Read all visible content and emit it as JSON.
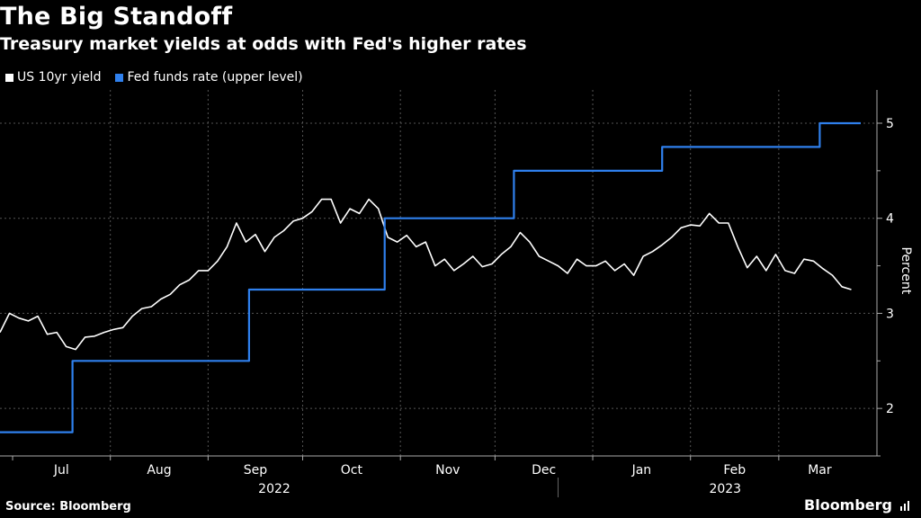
{
  "title": "The Big Standoff",
  "subtitle": "Treasury market yields at odds with Fed's higher rates",
  "legend": [
    {
      "label": "US 10yr yield",
      "color": "#ffffff"
    },
    {
      "label": "Fed funds rate (upper level)",
      "color": "#2f80ed"
    }
  ],
  "footer": {
    "source": "Source: Bloomberg",
    "brand": "Bloomberg"
  },
  "chart_data": {
    "type": "line",
    "title": "The Big Standoff",
    "subtitle": "Treasury market yields at odds with Fed's higher rates",
    "ylabel": "Percent",
    "ylim": [
      1.5,
      5.35
    ],
    "yticks": [
      2,
      3,
      4,
      5
    ],
    "x_is_day_index": "day 0 = 2022-06-27",
    "xlim": [
      0,
      273
    ],
    "month_ticks": [
      {
        "label": "Jul",
        "day": 4
      },
      {
        "label": "Aug",
        "day": 35
      },
      {
        "label": "Sep",
        "day": 66
      },
      {
        "label": "Oct",
        "day": 96
      },
      {
        "label": "Nov",
        "day": 127
      },
      {
        "label": "Dec",
        "day": 157
      },
      {
        "label": "Jan",
        "day": 188
      },
      {
        "label": "Feb",
        "day": 219
      },
      {
        "label": "Mar",
        "day": 247
      }
    ],
    "year_labels": [
      {
        "label": "2022",
        "day": 87
      },
      {
        "label": "2023",
        "day": 230
      }
    ],
    "year_divider_day": 177,
    "series": [
      {
        "name": "US 10yr yield",
        "color": "#ffffff",
        "x": [
          0,
          3,
          6,
          9,
          12,
          15,
          18,
          21,
          24,
          27,
          30,
          33,
          36,
          39,
          42,
          45,
          48,
          51,
          54,
          57,
          60,
          63,
          66,
          69,
          72,
          75,
          78,
          81,
          84,
          87,
          90,
          93,
          96,
          99,
          102,
          105,
          108,
          111,
          114,
          117,
          120,
          123,
          126,
          129,
          132,
          135,
          138,
          141,
          144,
          147,
          150,
          153,
          156,
          159,
          162,
          165,
          168,
          171,
          174,
          177,
          180,
          183,
          186,
          189,
          192,
          195,
          198,
          201,
          204,
          207,
          210,
          213,
          216,
          219,
          222,
          225,
          228,
          231,
          234,
          237,
          240,
          243,
          246,
          249,
          252,
          255,
          258,
          261,
          264,
          267,
          270
        ],
        "values": [
          2.8,
          3.0,
          2.95,
          2.92,
          2.97,
          2.78,
          2.8,
          2.65,
          2.62,
          2.75,
          2.76,
          2.8,
          2.83,
          2.85,
          2.97,
          3.05,
          3.07,
          3.15,
          3.2,
          3.3,
          3.35,
          3.45,
          3.45,
          3.55,
          3.7,
          3.95,
          3.75,
          3.83,
          3.65,
          3.8,
          3.87,
          3.97,
          4.0,
          4.07,
          4.2,
          4.2,
          3.95,
          4.1,
          4.05,
          4.2,
          4.1,
          3.8,
          3.75,
          3.82,
          3.7,
          3.75,
          3.5,
          3.57,
          3.45,
          3.52,
          3.6,
          3.49,
          3.52,
          3.62,
          3.7,
          3.85,
          3.75,
          3.6,
          3.55,
          3.5,
          3.42,
          3.57,
          3.5,
          3.5,
          3.55,
          3.45,
          3.52,
          3.4,
          3.6,
          3.65,
          3.72,
          3.8,
          3.9,
          3.93,
          3.92,
          4.05,
          3.95,
          3.95,
          3.7,
          3.48,
          3.6,
          3.45,
          3.62,
          3.45,
          3.42,
          3.57,
          3.55,
          3.47,
          3.4,
          3.28,
          3.25
        ]
      },
      {
        "name": "Fed funds rate (upper level)",
        "color": "#2f80ed",
        "step": true,
        "x": [
          0,
          23,
          23,
          79,
          79,
          122,
          122,
          163,
          163,
          210,
          210,
          260,
          260,
          273
        ],
        "values": [
          1.75,
          1.75,
          2.5,
          2.5,
          3.25,
          3.25,
          4.0,
          4.0,
          4.5,
          4.5,
          4.75,
          4.75,
          5.0,
          5.0
        ]
      }
    ]
  }
}
